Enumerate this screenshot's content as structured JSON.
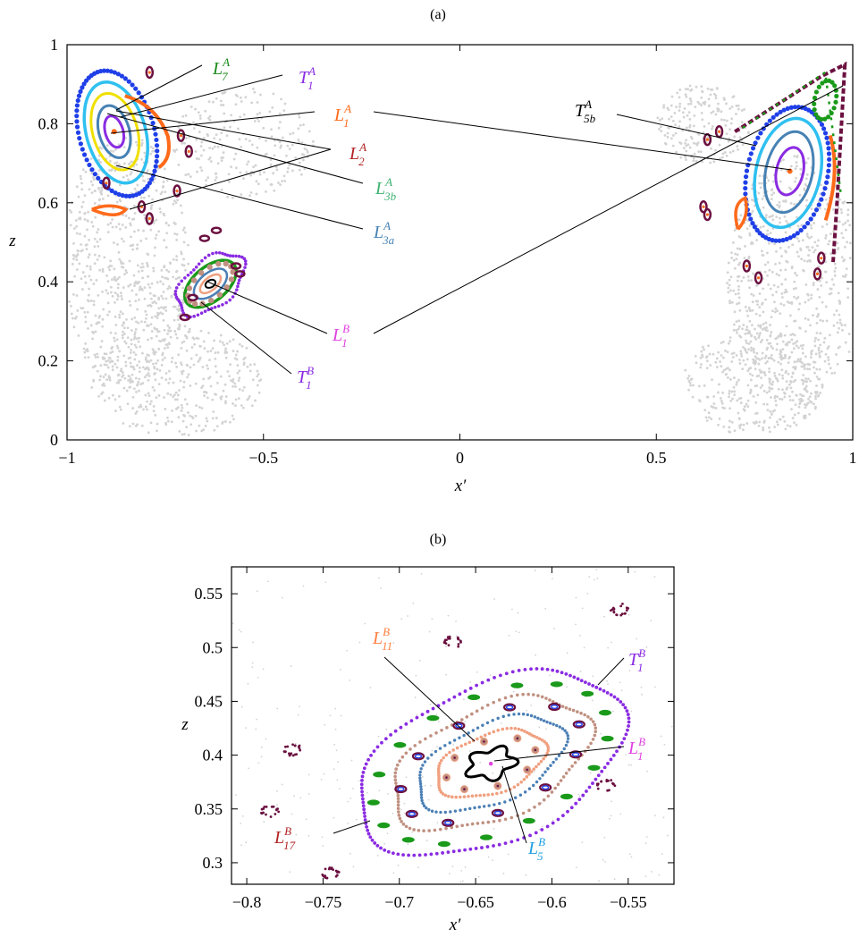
{
  "colors": {
    "chaos": "#d3d3d3",
    "L7A": "#1a8a1a",
    "T1": "#8a2be2",
    "L1A": "#ff6a1a",
    "L2A": "#b22222",
    "L3bA": "#3cb371",
    "L3aA": "#4682b4",
    "L1B": "#e040e0",
    "T5bA": "#000000",
    "L11B": "#ff7f3f",
    "L17B": "#b22222",
    "L5B": "#1e9fe0",
    "blue": "#1f3fe8",
    "cyan": "#2fc0f0",
    "yellow": "#f0e000",
    "maroon": "#6b1040",
    "tan": "#c09080",
    "steel": "#4a7fb5",
    "salmon": "#f0a080",
    "green": "#1a9a1a"
  },
  "chart_data": [
    {
      "panel_title": "(a)",
      "type": "scatter",
      "xlabel": "x′",
      "ylabel": "z",
      "xlim": [
        -1,
        1
      ],
      "ylim": [
        0,
        1
      ],
      "xticks": [
        "−1",
        "−0.5",
        "0",
        "0.5",
        "1"
      ],
      "yticks": [
        "0",
        "0.2",
        "0.4",
        "0.6",
        "0.8",
        "1"
      ],
      "labels": [
        {
          "id": "L7A",
          "base": "L",
          "sup": "A",
          "sub": "7"
        },
        {
          "id": "T1A",
          "base": "T",
          "sup": "A",
          "sub": "1"
        },
        {
          "id": "L1A",
          "base": "L",
          "sup": "A",
          "sub": "1"
        },
        {
          "id": "L2A",
          "base": "L",
          "sup": "A",
          "sub": "2"
        },
        {
          "id": "L3bA",
          "base": "L",
          "sup": "A",
          "sub": "3b"
        },
        {
          "id": "L3aA",
          "base": "L",
          "sup": "A",
          "sub": "3a"
        },
        {
          "id": "L1B",
          "base": "L",
          "sup": "B",
          "sub": "1"
        },
        {
          "id": "T1B",
          "base": "T",
          "sup": "B",
          "sub": "1"
        },
        {
          "id": "T5bA",
          "base": "T",
          "sup": "A",
          "sub": "5b"
        }
      ],
      "centers": [
        {
          "name": "left-island-A",
          "x": -0.88,
          "z": 0.78
        },
        {
          "name": "right-island-A",
          "x": 0.84,
          "z": 0.68
        },
        {
          "name": "island-B",
          "x": -0.635,
          "z": 0.395
        }
      ]
    },
    {
      "panel_title": "(b)",
      "type": "scatter",
      "xlabel": "x′",
      "ylabel": "z",
      "xlim": [
        -0.81,
        -0.52
      ],
      "ylim": [
        0.28,
        0.575
      ],
      "xticks": [
        "−0.8",
        "−0.75",
        "−0.7",
        "−0.65",
        "−0.6",
        "−0.55"
      ],
      "yticks": [
        "0.3",
        "0.35",
        "0.4",
        "0.45",
        "0.5",
        "0.55"
      ],
      "labels": [
        {
          "id": "L11B",
          "base": "L",
          "sup": "B",
          "sub": "11"
        },
        {
          "id": "T1B",
          "base": "T",
          "sup": "B",
          "sub": "1"
        },
        {
          "id": "L1B",
          "base": "L",
          "sup": "B",
          "sub": "1"
        },
        {
          "id": "L17B",
          "base": "L",
          "sup": "B",
          "sub": "17"
        },
        {
          "id": "L5B",
          "base": "L",
          "sup": "B",
          "sub": "5"
        }
      ],
      "center": {
        "x": -0.64,
        "z": 0.392
      }
    }
  ]
}
